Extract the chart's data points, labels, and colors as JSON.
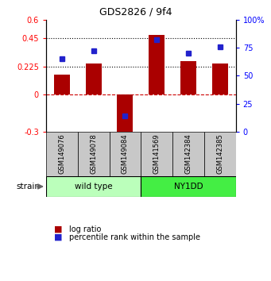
{
  "title": "GDS2826 / 9f4",
  "samples": [
    "GSM149076",
    "GSM149078",
    "GSM149084",
    "GSM141569",
    "GSM142384",
    "GSM142385"
  ],
  "log_ratios": [
    0.16,
    0.245,
    -0.32,
    0.48,
    0.265,
    0.245
  ],
  "percentile_ranks": [
    65,
    72,
    14,
    82,
    70,
    76
  ],
  "bar_color": "#aa0000",
  "dot_color": "#2222cc",
  "ylim_left": [
    -0.3,
    0.6
  ],
  "ylim_right": [
    0,
    100
  ],
  "yticks_left": [
    -0.3,
    0,
    0.225,
    0.45,
    0.6
  ],
  "ytick_labels_left": [
    "-0.3",
    "0",
    "0.225",
    "0.45",
    "0.6"
  ],
  "yticks_right": [
    0,
    25,
    50,
    75,
    100
  ],
  "ytick_labels_right": [
    "0",
    "25",
    "50",
    "75",
    "100%"
  ],
  "hlines": [
    0.225,
    0.45
  ],
  "hline_zero": 0,
  "wild_type_count": 3,
  "ny1dd_count": 3,
  "wild_type_label": "wild type",
  "ny1dd_label": "NY1DD",
  "wild_type_color": "#bbffbb",
  "ny1dd_color": "#44ee44",
  "strain_label": "strain",
  "legend_log_ratio": "log ratio",
  "legend_percentile": "percentile rank within the sample",
  "bar_width": 0.5
}
